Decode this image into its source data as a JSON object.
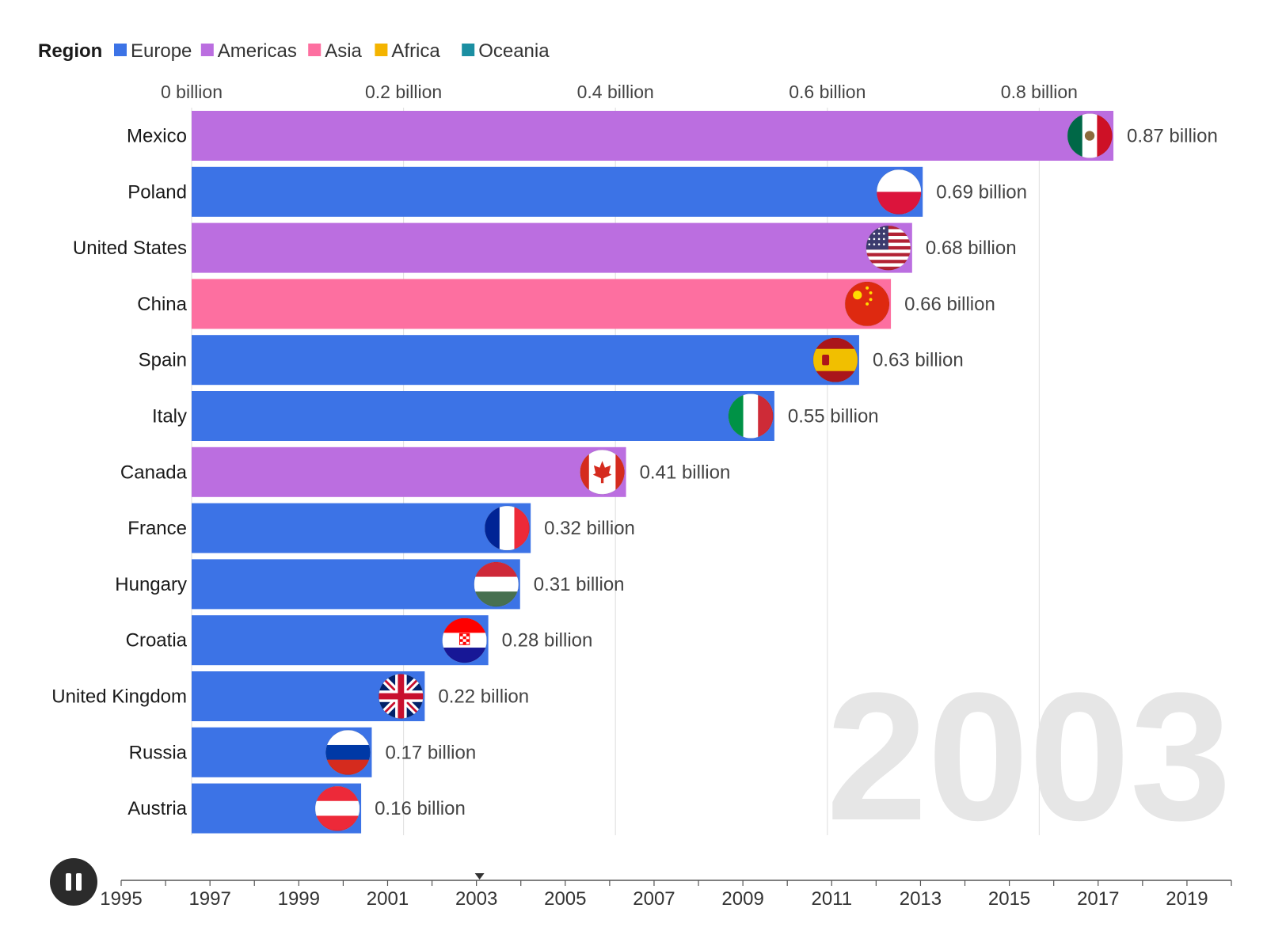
{
  "legend": {
    "title": "Region",
    "items": [
      {
        "label": "Europe",
        "color": "#3c73e6"
      },
      {
        "label": "Americas",
        "color": "#bb6ee0"
      },
      {
        "label": "Asia",
        "color": "#fd6fa0"
      },
      {
        "label": "Africa",
        "color": "#f4b400"
      },
      {
        "label": "Oceania",
        "color": "#1b8fa2"
      }
    ]
  },
  "timeline": {
    "current_year": "2003",
    "years": [
      "1995",
      "1997",
      "1999",
      "2001",
      "2003",
      "2005",
      "2007",
      "2009",
      "2011",
      "2013",
      "2015",
      "2017",
      "2019"
    ],
    "play_state": "playing"
  },
  "chart_data": {
    "type": "bar",
    "orientation": "horizontal",
    "title": "",
    "xlabel": "",
    "ylabel": "",
    "xlim": [
      0,
      0.9
    ],
    "x_ticks": [
      0,
      0.2,
      0.4,
      0.6,
      0.8
    ],
    "x_tick_labels": [
      "0 billion",
      "0.2 billion",
      "0.4 billion",
      "0.6 billion",
      "0.8 billion"
    ],
    "grid": true,
    "year": "2003",
    "categories": [
      "Mexico",
      "Poland",
      "United States",
      "China",
      "Spain",
      "Italy",
      "Canada",
      "France",
      "Hungary",
      "Croatia",
      "United Kingdom",
      "Russia",
      "Austria"
    ],
    "values": [
      0.87,
      0.69,
      0.68,
      0.66,
      0.63,
      0.55,
      0.41,
      0.32,
      0.31,
      0.28,
      0.22,
      0.17,
      0.16
    ],
    "value_labels": [
      "0.87 billion",
      "0.69 billion",
      "0.68 billion",
      "0.66 billion",
      "0.63 billion",
      "0.55 billion",
      "0.41 billion",
      "0.32 billion",
      "0.31 billion",
      "0.28 billion",
      "0.22 billion",
      "0.17 billion",
      "0.16 billion"
    ],
    "regions": [
      "Americas",
      "Europe",
      "Americas",
      "Asia",
      "Europe",
      "Europe",
      "Americas",
      "Europe",
      "Europe",
      "Europe",
      "Europe",
      "Europe",
      "Europe"
    ],
    "flags": [
      "mexico-flag-icon",
      "poland-flag-icon",
      "united-states-flag-icon",
      "china-flag-icon",
      "spain-flag-icon",
      "italy-flag-icon",
      "canada-flag-icon",
      "france-flag-icon",
      "hungary-flag-icon",
      "croatia-flag-icon",
      "united-kingdom-flag-icon",
      "russia-flag-icon",
      "austria-flag-icon"
    ]
  }
}
